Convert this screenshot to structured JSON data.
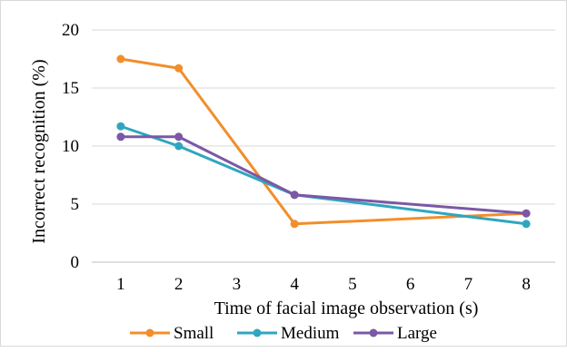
{
  "chart_data": {
    "type": "line",
    "title": "",
    "xlabel": "Time of facial image observation (s)",
    "ylabel": "Incorrect recognition (%)",
    "x_categories": [
      "1",
      "2",
      "3",
      "4",
      "5",
      "6",
      "7",
      "8"
    ],
    "ylim": [
      0,
      20
    ],
    "yticks": [
      0,
      5,
      10,
      15,
      20
    ],
    "grid": true,
    "legend_position": "bottom",
    "series": [
      {
        "name": "Small",
        "color": "#F28E2B",
        "points": [
          {
            "x": "1",
            "y": 17.5
          },
          {
            "x": "2",
            "y": 16.7
          },
          {
            "x": "4",
            "y": 3.3
          },
          {
            "x": "8",
            "y": 4.2
          }
        ]
      },
      {
        "name": "Medium",
        "color": "#2FA6BF",
        "points": [
          {
            "x": "1",
            "y": 11.7
          },
          {
            "x": "2",
            "y": 10.0
          },
          {
            "x": "4",
            "y": 5.8
          },
          {
            "x": "8",
            "y": 3.3
          }
        ]
      },
      {
        "name": "Large",
        "color": "#7B58A6",
        "points": [
          {
            "x": "1",
            "y": 10.8
          },
          {
            "x": "2",
            "y": 10.8
          },
          {
            "x": "4",
            "y": 5.8
          },
          {
            "x": "8",
            "y": 4.2
          }
        ]
      }
    ]
  }
}
